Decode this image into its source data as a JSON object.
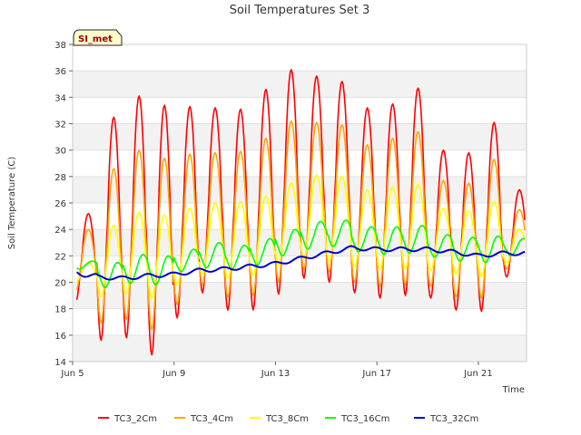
{
  "chart_data": {
    "type": "line",
    "title": "Soil Temperatures Set 3",
    "xlabel": "Time",
    "ylabel": "Soil Temperature (C)",
    "site_badge": "SI_met",
    "ylim": [
      14,
      38
    ],
    "yticks": [
      14,
      16,
      18,
      20,
      22,
      24,
      26,
      28,
      30,
      32,
      34,
      36,
      38
    ],
    "xlim": [
      0,
      17.9
    ],
    "xticks": [
      {
        "day": 0,
        "label": "Jun 5"
      },
      {
        "day": 4,
        "label": "Jun 9"
      },
      {
        "day": 8,
        "label": "Jun 13"
      },
      {
        "day": 12,
        "label": "Jun 17"
      },
      {
        "day": 16,
        "label": "Jun 21"
      }
    ],
    "grid": true,
    "legend_position": "bottom",
    "x_units": "days since Jun 5",
    "series": [
      {
        "name": "TC3_2Cm",
        "color": "#ff0000",
        "daily_max": [
          25.2,
          32.5,
          34.1,
          33.4,
          33.3,
          33.2,
          33.1,
          34.6,
          36.1,
          35.6,
          35.2,
          33.2,
          33.5,
          34.7,
          30.0,
          29.8,
          32.1,
          27.0
        ],
        "daily_min": [
          18.5,
          15.6,
          15.8,
          14.5,
          17.3,
          19.2,
          17.9,
          17.9,
          19.1,
          20.3,
          20.0,
          19.2,
          18.8,
          19.0,
          18.8,
          17.9,
          17.8,
          20.4
        ]
      },
      {
        "name": "TC3_4Cm",
        "color": "#ffa500",
        "daily_max": [
          24.0,
          28.6,
          30.0,
          29.4,
          29.7,
          29.8,
          29.9,
          30.9,
          32.2,
          32.1,
          31.9,
          30.4,
          30.9,
          31.4,
          27.7,
          27.5,
          29.3,
          25.5
        ],
        "daily_min": [
          19.3,
          16.9,
          17.2,
          16.4,
          18.3,
          19.8,
          18.9,
          19.0,
          20.0,
          21.0,
          20.8,
          20.0,
          19.7,
          19.8,
          19.7,
          18.9,
          18.8,
          21.0
        ]
      },
      {
        "name": "TC3_8Cm",
        "color": "#ffff00",
        "daily_max": [
          21.5,
          24.3,
          25.3,
          25.1,
          25.6,
          26.0,
          26.1,
          26.5,
          27.5,
          28.1,
          28.0,
          27.0,
          27.2,
          27.4,
          25.6,
          25.4,
          26.1,
          24.0
        ],
        "daily_min": [
          20.0,
          18.9,
          19.1,
          18.8,
          19.8,
          20.6,
          20.3,
          20.5,
          21.3,
          21.8,
          21.6,
          21.2,
          21.0,
          21.0,
          20.9,
          20.6,
          20.4,
          21.5
        ]
      },
      {
        "name": "TC3_16Cm",
        "color": "#00ff00",
        "daily_max": [
          21.6,
          21.5,
          22.1,
          22.0,
          22.5,
          23.0,
          22.8,
          23.3,
          24.0,
          24.6,
          24.7,
          24.2,
          24.2,
          24.3,
          23.6,
          23.4,
          23.5,
          23.3
        ],
        "daily_min": [
          21.0,
          19.6,
          19.9,
          19.8,
          20.8,
          21.1,
          21.0,
          21.3,
          22.0,
          22.5,
          22.7,
          22.3,
          22.1,
          22.2,
          21.9,
          21.6,
          21.5,
          22.0
        ]
      },
      {
        "name": "TC3_32Cm",
        "color": "#0000cc",
        "daily_mean": [
          20.8,
          20.4,
          20.3,
          20.5,
          20.6,
          20.9,
          21.0,
          21.2,
          21.4,
          21.8,
          22.2,
          22.6,
          22.5,
          22.5,
          22.5,
          22.3,
          22.0,
          22.2
        ],
        "daily_amplitude": [
          0.2,
          0.15,
          0.15,
          0.15,
          0.15,
          0.15,
          0.15,
          0.15,
          0.15,
          0.15,
          0.15,
          0.15,
          0.15,
          0.15,
          0.15,
          0.15,
          0.15,
          0.15
        ]
      }
    ]
  }
}
